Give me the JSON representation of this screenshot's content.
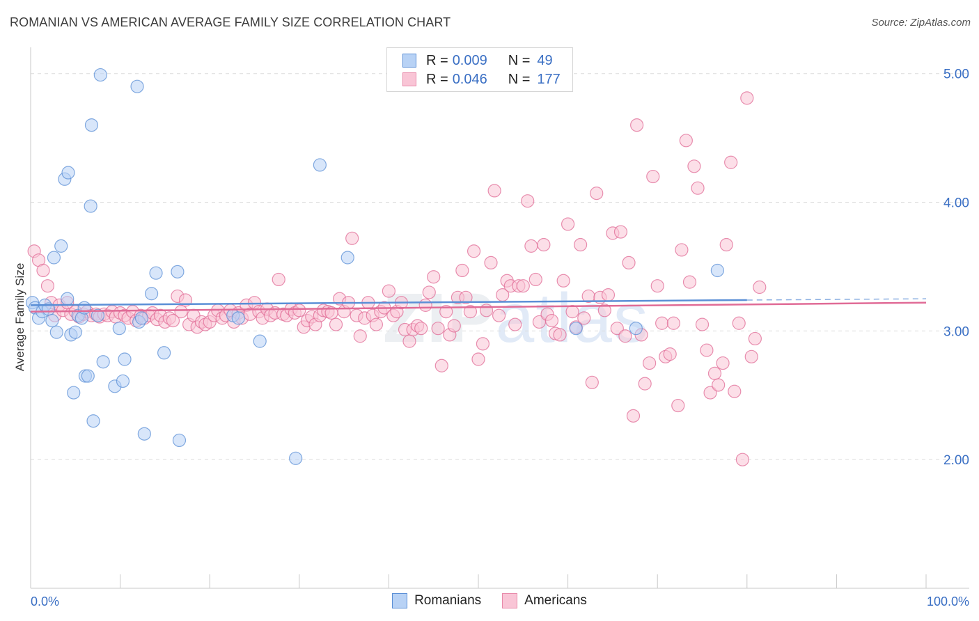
{
  "title": "ROMANIAN VS AMERICAN AVERAGE FAMILY SIZE CORRELATION CHART",
  "source": "Source: ZipAtlas.com",
  "watermark": {
    "zip": "ZIP",
    "atlas": "atlas"
  },
  "legend": {
    "rows": [
      {
        "r_label": "R =",
        "r_value": "0.009",
        "n_label": "N =",
        "n_value": "49",
        "fill": "#b8d2f5",
        "stroke": "#5b8fd6"
      },
      {
        "r_label": "R =",
        "r_value": "0.046",
        "n_label": "N =",
        "n_value": "177",
        "fill": "#f9c5d6",
        "stroke": "#e88aaa"
      }
    ]
  },
  "bottom_legend": [
    {
      "label": "Romanians",
      "fill": "#b8d2f5",
      "stroke": "#5b8fd6"
    },
    {
      "label": "Americans",
      "fill": "#f9c5d6",
      "stroke": "#e88aaa"
    }
  ],
  "chart_data": {
    "type": "scatter",
    "xlabel": "",
    "ylabel": "Average Family Size",
    "xlim": [
      0,
      100
    ],
    "ylim": [
      1.0,
      5.15
    ],
    "x_tick_labels": [
      "0.0%",
      "100.0%"
    ],
    "y_ticks": [
      2.0,
      3.0,
      4.0,
      5.0
    ],
    "y_tick_labels": [
      "2.00",
      "3.00",
      "4.00",
      "5.00"
    ],
    "grid": true,
    "series": [
      {
        "name": "Romanians",
        "color": "#5b8fd6",
        "fill": "#b8d2f5",
        "trend": {
          "x": [
            0,
            80
          ],
          "y": [
            3.2,
            3.24
          ],
          "dashed_to": [
            100,
            3.25
          ]
        },
        "points": [
          [
            0.2,
            3.22
          ],
          [
            0.5,
            3.18
          ],
          [
            0.9,
            3.1
          ],
          [
            1.3,
            3.15
          ],
          [
            1.6,
            3.2
          ],
          [
            2.0,
            3.17
          ],
          [
            2.4,
            3.08
          ],
          [
            2.6,
            3.57
          ],
          [
            2.9,
            2.99
          ],
          [
            3.4,
            3.66
          ],
          [
            3.8,
            4.18
          ],
          [
            4.2,
            4.23
          ],
          [
            4.1,
            3.25
          ],
          [
            4.5,
            2.97
          ],
          [
            4.8,
            2.52
          ],
          [
            5.0,
            2.99
          ],
          [
            5.3,
            3.12
          ],
          [
            5.7,
            3.1
          ],
          [
            6.0,
            3.18
          ],
          [
            6.1,
            2.65
          ],
          [
            6.4,
            2.65
          ],
          [
            6.7,
            3.97
          ],
          [
            6.8,
            4.6
          ],
          [
            7.0,
            2.3
          ],
          [
            7.5,
            3.12
          ],
          [
            7.8,
            4.99
          ],
          [
            8.1,
            2.76
          ],
          [
            9.4,
            2.57
          ],
          [
            9.9,
            3.02
          ],
          [
            10.3,
            2.61
          ],
          [
            10.5,
            2.78
          ],
          [
            11.9,
            4.9
          ],
          [
            12.1,
            3.07
          ],
          [
            12.4,
            3.1
          ],
          [
            12.7,
            2.2
          ],
          [
            13.5,
            3.29
          ],
          [
            14.0,
            3.45
          ],
          [
            14.9,
            2.83
          ],
          [
            16.4,
            3.46
          ],
          [
            16.6,
            2.15
          ],
          [
            22.6,
            3.12
          ],
          [
            23.2,
            3.1
          ],
          [
            25.6,
            2.92
          ],
          [
            29.6,
            2.01
          ],
          [
            32.3,
            4.29
          ],
          [
            35.4,
            3.57
          ],
          [
            60.9,
            3.02
          ],
          [
            67.6,
            3.02
          ],
          [
            76.7,
            3.47
          ]
        ]
      },
      {
        "name": "Americans",
        "color": "#e06b96",
        "fill": "#f9c5d6",
        "trend": {
          "x": [
            0,
            100
          ],
          "y": [
            3.15,
            3.22
          ]
        },
        "points": [
          [
            0.4,
            3.62
          ],
          [
            0.9,
            3.55
          ],
          [
            1.4,
            3.47
          ],
          [
            1.9,
            3.35
          ],
          [
            2.3,
            3.22
          ],
          [
            2.7,
            3.12
          ],
          [
            3.2,
            3.2
          ],
          [
            3.6,
            3.16
          ],
          [
            4.1,
            3.22
          ],
          [
            4.5,
            3.13
          ],
          [
            5.0,
            3.15
          ],
          [
            5.4,
            3.11
          ],
          [
            5.9,
            3.13
          ],
          [
            6.3,
            3.15
          ],
          [
            6.8,
            3.12
          ],
          [
            7.3,
            3.13
          ],
          [
            7.7,
            3.11
          ],
          [
            8.2,
            3.13
          ],
          [
            8.6,
            3.12
          ],
          [
            9.1,
            3.15
          ],
          [
            9.5,
            3.11
          ],
          [
            10.0,
            3.14
          ],
          [
            10.5,
            3.12
          ],
          [
            10.9,
            3.1
          ],
          [
            11.4,
            3.15
          ],
          [
            11.8,
            3.08
          ],
          [
            12.3,
            3.12
          ],
          [
            12.7,
            3.1
          ],
          [
            13.2,
            3.12
          ],
          [
            13.6,
            3.14
          ],
          [
            14.1,
            3.09
          ],
          [
            14.5,
            3.12
          ],
          [
            15.0,
            3.07
          ],
          [
            15.5,
            3.1
          ],
          [
            15.9,
            3.08
          ],
          [
            16.4,
            3.27
          ],
          [
            16.8,
            3.15
          ],
          [
            17.3,
            3.24
          ],
          [
            17.7,
            3.05
          ],
          [
            18.2,
            3.12
          ],
          [
            18.6,
            3.03
          ],
          [
            19.1,
            3.07
          ],
          [
            19.5,
            3.05
          ],
          [
            20.0,
            3.07
          ],
          [
            20.5,
            3.12
          ],
          [
            20.9,
            3.16
          ],
          [
            21.4,
            3.1
          ],
          [
            21.8,
            3.12
          ],
          [
            22.3,
            3.16
          ],
          [
            22.7,
            3.07
          ],
          [
            23.2,
            3.14
          ],
          [
            23.6,
            3.1
          ],
          [
            24.1,
            3.2
          ],
          [
            24.5,
            3.13
          ],
          [
            25.0,
            3.22
          ],
          [
            25.5,
            3.15
          ],
          [
            25.9,
            3.1
          ],
          [
            26.4,
            3.17
          ],
          [
            26.8,
            3.12
          ],
          [
            27.3,
            3.14
          ],
          [
            27.7,
            3.4
          ],
          [
            28.2,
            3.13
          ],
          [
            28.6,
            3.12
          ],
          [
            29.1,
            3.17
          ],
          [
            29.5,
            3.14
          ],
          [
            30.0,
            3.16
          ],
          [
            30.5,
            3.03
          ],
          [
            30.9,
            3.08
          ],
          [
            31.4,
            3.11
          ],
          [
            31.8,
            3.05
          ],
          [
            32.3,
            3.12
          ],
          [
            32.7,
            3.16
          ],
          [
            33.2,
            3.15
          ],
          [
            33.6,
            3.14
          ],
          [
            34.1,
            3.05
          ],
          [
            34.5,
            3.25
          ],
          [
            35.0,
            3.15
          ],
          [
            35.5,
            3.22
          ],
          [
            35.9,
            3.72
          ],
          [
            36.4,
            3.12
          ],
          [
            36.8,
            2.96
          ],
          [
            37.3,
            3.1
          ],
          [
            37.7,
            3.22
          ],
          [
            38.2,
            3.12
          ],
          [
            38.6,
            3.05
          ],
          [
            39.1,
            3.15
          ],
          [
            39.5,
            3.18
          ],
          [
            40.0,
            3.31
          ],
          [
            40.5,
            3.12
          ],
          [
            40.9,
            3.15
          ],
          [
            41.4,
            3.22
          ],
          [
            41.8,
            3.01
          ],
          [
            42.3,
            2.92
          ],
          [
            42.7,
            3.01
          ],
          [
            43.2,
            3.04
          ],
          [
            43.6,
            3.02
          ],
          [
            44.1,
            3.2
          ],
          [
            44.5,
            3.3
          ],
          [
            45.0,
            3.42
          ],
          [
            45.5,
            3.02
          ],
          [
            45.9,
            2.73
          ],
          [
            46.4,
            3.15
          ],
          [
            46.8,
            2.97
          ],
          [
            47.3,
            3.04
          ],
          [
            47.7,
            3.26
          ],
          [
            48.2,
            3.47
          ],
          [
            48.6,
            3.26
          ],
          [
            49.1,
            3.15
          ],
          [
            49.5,
            3.62
          ],
          [
            50.0,
            2.78
          ],
          [
            50.5,
            2.9
          ],
          [
            50.9,
            3.16
          ],
          [
            51.4,
            3.53
          ],
          [
            51.8,
            4.09
          ],
          [
            52.3,
            3.12
          ],
          [
            52.7,
            3.28
          ],
          [
            53.2,
            3.39
          ],
          [
            53.6,
            3.35
          ],
          [
            54.1,
            3.05
          ],
          [
            54.5,
            3.35
          ],
          [
            55.0,
            3.35
          ],
          [
            55.5,
            4.01
          ],
          [
            55.9,
            3.66
          ],
          [
            56.4,
            3.4
          ],
          [
            56.8,
            3.07
          ],
          [
            57.3,
            3.67
          ],
          [
            57.7,
            3.13
          ],
          [
            58.2,
            3.08
          ],
          [
            58.6,
            2.98
          ],
          [
            59.1,
            2.97
          ],
          [
            59.5,
            3.39
          ],
          [
            60.0,
            3.83
          ],
          [
            60.5,
            3.15
          ],
          [
            60.9,
            3.03
          ],
          [
            61.4,
            3.67
          ],
          [
            61.8,
            3.1
          ],
          [
            62.3,
            3.27
          ],
          [
            62.7,
            2.6
          ],
          [
            63.2,
            4.07
          ],
          [
            63.6,
            3.26
          ],
          [
            64.1,
            3.16
          ],
          [
            64.5,
            3.28
          ],
          [
            65.0,
            3.76
          ],
          [
            65.5,
            3.02
          ],
          [
            65.9,
            3.77
          ],
          [
            66.4,
            2.96
          ],
          [
            66.8,
            3.53
          ],
          [
            67.3,
            2.34
          ],
          [
            67.7,
            4.6
          ],
          [
            68.2,
            2.97
          ],
          [
            68.6,
            2.59
          ],
          [
            69.1,
            2.75
          ],
          [
            69.5,
            4.2
          ],
          [
            70.0,
            3.35
          ],
          [
            70.5,
            3.06
          ],
          [
            70.9,
            2.8
          ],
          [
            71.4,
            2.82
          ],
          [
            71.8,
            3.06
          ],
          [
            72.3,
            2.42
          ],
          [
            72.7,
            3.63
          ],
          [
            73.2,
            4.48
          ],
          [
            73.6,
            3.38
          ],
          [
            74.1,
            4.28
          ],
          [
            74.5,
            4.11
          ],
          [
            75.0,
            3.05
          ],
          [
            75.5,
            2.85
          ],
          [
            75.9,
            2.52
          ],
          [
            76.4,
            2.67
          ],
          [
            76.8,
            2.58
          ],
          [
            77.3,
            2.75
          ],
          [
            77.7,
            3.67
          ],
          [
            78.2,
            4.31
          ],
          [
            78.6,
            2.53
          ],
          [
            79.1,
            3.06
          ],
          [
            79.5,
            2.0
          ],
          [
            80.0,
            4.81
          ],
          [
            80.5,
            2.8
          ],
          [
            80.9,
            2.94
          ],
          [
            81.4,
            3.34
          ]
        ]
      }
    ]
  }
}
